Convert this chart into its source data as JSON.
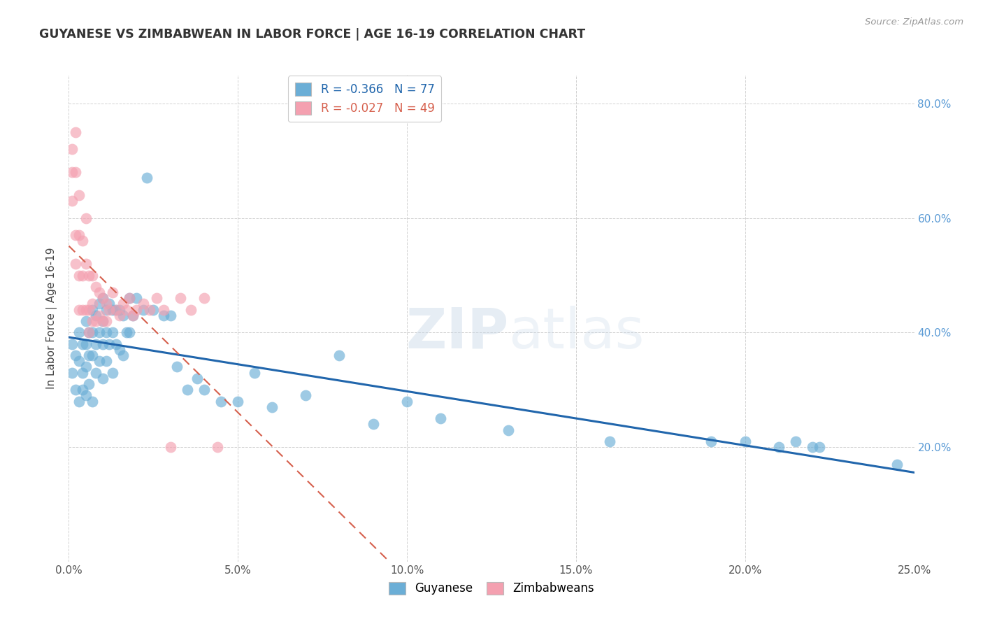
{
  "title": "GUYANESE VS ZIMBABWEAN IN LABOR FORCE | AGE 16-19 CORRELATION CHART",
  "source": "Source: ZipAtlas.com",
  "ylabel": "In Labor Force | Age 16-19",
  "xlim": [
    0.0,
    0.25
  ],
  "ylim": [
    0.0,
    0.85
  ],
  "xticks": [
    0.0,
    0.05,
    0.1,
    0.15,
    0.2,
    0.25
  ],
  "yticks_right": [
    0.2,
    0.4,
    0.6,
    0.8
  ],
  "background_color": "#ffffff",
  "legend_R_blue": "-0.366",
  "legend_N_blue": "77",
  "legend_R_pink": "-0.027",
  "legend_N_pink": "49",
  "blue_color": "#6baed6",
  "pink_color": "#f4a0b0",
  "blue_line_color": "#2166ac",
  "pink_line_color": "#d6604d",
  "guyanese_x": [
    0.001,
    0.001,
    0.002,
    0.002,
    0.003,
    0.003,
    0.003,
    0.004,
    0.004,
    0.004,
    0.005,
    0.005,
    0.005,
    0.005,
    0.006,
    0.006,
    0.006,
    0.007,
    0.007,
    0.007,
    0.007,
    0.008,
    0.008,
    0.008,
    0.009,
    0.009,
    0.009,
    0.01,
    0.01,
    0.01,
    0.01,
    0.011,
    0.011,
    0.011,
    0.012,
    0.012,
    0.013,
    0.013,
    0.013,
    0.014,
    0.014,
    0.015,
    0.015,
    0.016,
    0.016,
    0.017,
    0.018,
    0.018,
    0.019,
    0.02,
    0.022,
    0.023,
    0.025,
    0.028,
    0.03,
    0.032,
    0.035,
    0.038,
    0.04,
    0.045,
    0.05,
    0.055,
    0.06,
    0.07,
    0.08,
    0.09,
    0.1,
    0.11,
    0.13,
    0.16,
    0.19,
    0.2,
    0.21,
    0.215,
    0.22,
    0.222,
    0.245
  ],
  "guyanese_y": [
    0.38,
    0.33,
    0.36,
    0.3,
    0.4,
    0.35,
    0.28,
    0.38,
    0.33,
    0.3,
    0.42,
    0.38,
    0.34,
    0.29,
    0.4,
    0.36,
    0.31,
    0.44,
    0.4,
    0.36,
    0.28,
    0.43,
    0.38,
    0.33,
    0.45,
    0.4,
    0.35,
    0.46,
    0.42,
    0.38,
    0.32,
    0.44,
    0.4,
    0.35,
    0.45,
    0.38,
    0.44,
    0.4,
    0.33,
    0.44,
    0.38,
    0.44,
    0.37,
    0.43,
    0.36,
    0.4,
    0.46,
    0.4,
    0.43,
    0.46,
    0.44,
    0.67,
    0.44,
    0.43,
    0.43,
    0.34,
    0.3,
    0.32,
    0.3,
    0.28,
    0.28,
    0.33,
    0.27,
    0.29,
    0.36,
    0.24,
    0.28,
    0.25,
    0.23,
    0.21,
    0.21,
    0.21,
    0.2,
    0.21,
    0.2,
    0.2,
    0.17
  ],
  "zimbabwean_x": [
    0.001,
    0.001,
    0.001,
    0.002,
    0.002,
    0.002,
    0.002,
    0.003,
    0.003,
    0.003,
    0.003,
    0.004,
    0.004,
    0.004,
    0.005,
    0.005,
    0.005,
    0.006,
    0.006,
    0.006,
    0.007,
    0.007,
    0.007,
    0.008,
    0.008,
    0.009,
    0.009,
    0.01,
    0.01,
    0.011,
    0.011,
    0.012,
    0.013,
    0.014,
    0.015,
    0.016,
    0.017,
    0.018,
    0.019,
    0.02,
    0.022,
    0.024,
    0.026,
    0.028,
    0.03,
    0.033,
    0.036,
    0.04,
    0.044
  ],
  "zimbabwean_y": [
    0.72,
    0.68,
    0.63,
    0.75,
    0.68,
    0.57,
    0.52,
    0.64,
    0.57,
    0.5,
    0.44,
    0.56,
    0.5,
    0.44,
    0.6,
    0.52,
    0.44,
    0.5,
    0.44,
    0.4,
    0.5,
    0.45,
    0.42,
    0.48,
    0.42,
    0.47,
    0.43,
    0.46,
    0.42,
    0.45,
    0.42,
    0.44,
    0.47,
    0.44,
    0.43,
    0.45,
    0.44,
    0.46,
    0.43,
    0.44,
    0.45,
    0.44,
    0.46,
    0.44,
    0.2,
    0.46,
    0.44,
    0.46,
    0.2
  ]
}
